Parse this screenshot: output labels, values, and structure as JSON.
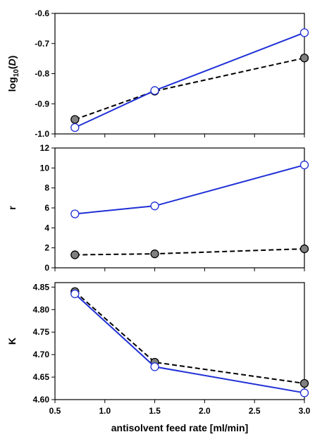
{
  "chart_data": [
    {
      "type": "line",
      "ylabel": "log10(D)",
      "ylabel_parts": {
        "base": "log",
        "sub": "10",
        "open": "(",
        "var": "D",
        "close": ")"
      },
      "ylim": [
        -1.0,
        -0.6
      ],
      "yticks": [
        -1.0,
        -0.9,
        -0.8,
        -0.7,
        -0.6
      ],
      "ytick_labels": [
        "-1.0",
        "-0.9",
        "-0.8",
        "-0.7",
        "-0.6"
      ],
      "xlim": [
        0.5,
        3.0
      ],
      "series": [
        {
          "style": "dashed-black-gray-markers",
          "x": [
            0.7,
            1.5,
            3.0
          ],
          "values": [
            -0.952,
            -0.858,
            -0.748
          ]
        },
        {
          "style": "solid-blue-open-markers",
          "x": [
            0.7,
            1.5,
            3.0
          ],
          "values": [
            -0.979,
            -0.856,
            -0.664
          ]
        }
      ]
    },
    {
      "type": "line",
      "ylabel": "r",
      "ylim": [
        0,
        12
      ],
      "yticks": [
        0,
        2,
        4,
        6,
        8,
        10,
        12
      ],
      "ytick_labels": [
        "0",
        "2",
        "4",
        "6",
        "8",
        "10",
        "12"
      ],
      "xlim": [
        0.5,
        3.0
      ],
      "series": [
        {
          "style": "dashed-black-gray-markers",
          "x": [
            0.7,
            1.5,
            3.0
          ],
          "values": [
            1.3,
            1.4,
            1.9
          ]
        },
        {
          "style": "solid-blue-open-markers",
          "x": [
            0.7,
            1.5,
            3.0
          ],
          "values": [
            5.4,
            6.2,
            10.3
          ]
        }
      ]
    },
    {
      "type": "line",
      "ylabel": "K",
      "xlabel": "antisolvent feed rate [ml/min]",
      "ylim": [
        4.6,
        4.86
      ],
      "yticks": [
        4.6,
        4.65,
        4.7,
        4.75,
        4.8,
        4.85
      ],
      "ytick_labels": [
        "4.60",
        "4.65",
        "4.70",
        "4.75",
        "4.80",
        "4.85"
      ],
      "xlim": [
        0.5,
        3.0
      ],
      "xticks": [
        0.5,
        1.0,
        1.5,
        2.0,
        2.5,
        3.0
      ],
      "xtick_labels": [
        "0.5",
        "1.0",
        "1.5",
        "2.0",
        "2.5",
        "3.0"
      ],
      "series": [
        {
          "style": "dashed-black-gray-markers",
          "x": [
            0.7,
            1.5,
            3.0
          ],
          "values": [
            4.84,
            4.683,
            4.636
          ]
        },
        {
          "style": "solid-blue-open-markers",
          "x": [
            0.7,
            1.5,
            3.0
          ],
          "values": [
            4.835,
            4.673,
            4.615
          ]
        }
      ]
    }
  ],
  "colors": {
    "axis": "#000000",
    "dashed_line": "#000000",
    "dashed_marker_fill": "#808080",
    "solid_line": "#1f2fd6",
    "solid_marker_fill": "#ffffff",
    "solid_marker_stroke": "#1f2fd6"
  }
}
